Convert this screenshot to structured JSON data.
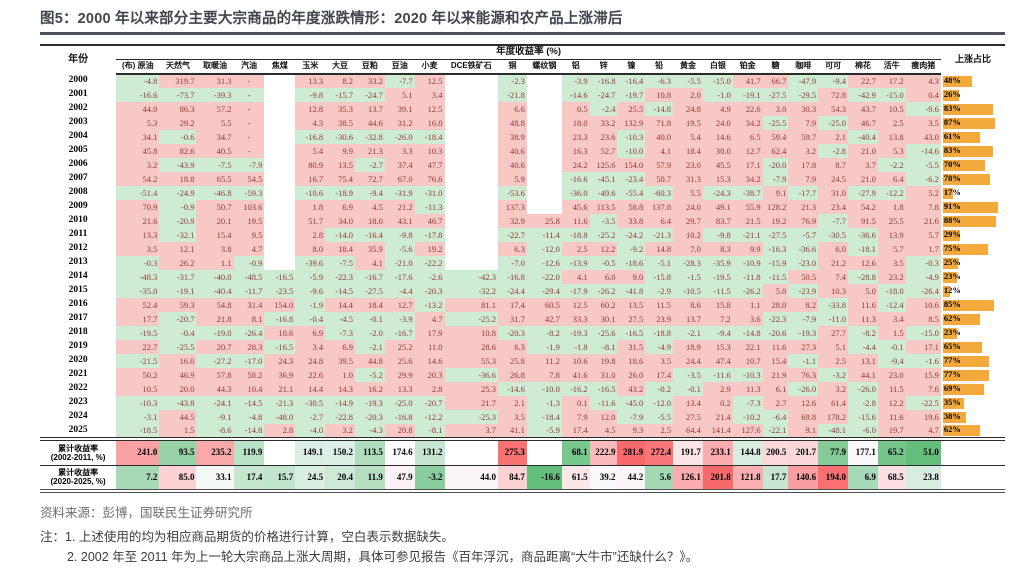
{
  "title": "图5：2000 年以来部分主要大宗商品的年度涨跌情形：2020 年以来能源和农产品上涨滞后",
  "colors": {
    "positive_bg": "#f7c8c4",
    "negative_bg": "#ceecd4",
    "bar_orange": "#F3A93C",
    "number_text": "#943634",
    "scale_low_green": "#63BE7B",
    "scale_mid_white": "#FCFCFF",
    "scale_high_red": "#F8696B",
    "title_color": "#40444d"
  },
  "chart_data": {
    "type": "table",
    "title": "图5：2000 年以来部分主要大宗商品的年度涨跌情形：2020 年以来能源和农产品上涨滞后",
    "year_header": "年份",
    "group_header": "年度收益率 (%)",
    "rise_share_header": "上涨占比",
    "columns": [
      "(布) 原油",
      "天然气",
      "取暖油",
      "汽油",
      "焦煤",
      "玉米",
      "大豆",
      "豆粕",
      "豆油",
      "小麦",
      "DCE铁矿石",
      "铜",
      "螺纹钢",
      "铝",
      "锌",
      "镍",
      "铅",
      "黄金",
      "白银",
      "铂金",
      "糖",
      "咖啡",
      "可可",
      "棉花",
      "活牛",
      "瘦肉猪"
    ],
    "rows": [
      {
        "year": "2000",
        "values": [
          -4.8,
          319.7,
          31.3,
          "-",
          null,
          13.3,
          8.2,
          33.2,
          -7.7,
          12.5,
          null,
          -2.3,
          null,
          -3.9,
          -16.8,
          -16.4,
          -6.3,
          -5.5,
          -15.0,
          41.7,
          66.7,
          -47.9,
          -9.4,
          22.7,
          17.2,
          4.3
        ],
        "rise_share": 48
      },
      {
        "year": "2001",
        "values": [
          -16.6,
          -73.7,
          -39.3,
          "-",
          null,
          -9.8,
          -15.7,
          -24.7,
          5.1,
          3.4,
          null,
          -21.8,
          null,
          -14.6,
          -24.7,
          -19.7,
          10.8,
          2.0,
          -1.0,
          -19.1,
          -27.5,
          -29.5,
          72.8,
          -42.9,
          -15.0,
          0.4
        ],
        "rise_share": 26
      },
      {
        "year": "2002",
        "values": [
          44.0,
          86.3,
          57.2,
          "-",
          null,
          12.8,
          35.3,
          13.7,
          39.1,
          12.5,
          null,
          6.6,
          null,
          0.5,
          -2.4,
          25.5,
          -14.8,
          24.8,
          4.9,
          22.6,
          3.0,
          30.3,
          54.3,
          43.7,
          10.5,
          -9.6
        ],
        "rise_share": 83
      },
      {
        "year": "2003",
        "values": [
          5.3,
          29.2,
          5.5,
          "-",
          null,
          4.3,
          38.5,
          44.6,
          31.2,
          16.0,
          null,
          48.8,
          null,
          18.0,
          33.2,
          132.9,
          71.8,
          19.5,
          24.0,
          34.2,
          -25.5,
          7.9,
          -25.0,
          46.7,
          2.5,
          3.5
        ],
        "rise_share": 87
      },
      {
        "year": "2004",
        "values": [
          34.1,
          -0.6,
          34.7,
          "-",
          null,
          -16.8,
          -30.6,
          -32.8,
          -26.0,
          -18.4,
          null,
          38.9,
          null,
          23.3,
          23.6,
          -10.3,
          40.0,
          5.4,
          14.6,
          6.5,
          59.4,
          59.7,
          2.1,
          -40.4,
          13.8,
          43.0
        ],
        "rise_share": 61
      },
      {
        "year": "2005",
        "values": [
          45.8,
          82.6,
          40.5,
          "-",
          null,
          5.4,
          9.9,
          21.3,
          3.3,
          10.3,
          null,
          40.6,
          null,
          16.3,
          52.7,
          -10.0,
          4.1,
          18.4,
          30.0,
          12.7,
          62.4,
          3.2,
          -2.8,
          21.0,
          5.3,
          -14.6
        ],
        "rise_share": 83
      },
      {
        "year": "2006",
        "values": [
          3.2,
          -43.9,
          -7.5,
          -7.9,
          null,
          80.9,
          13.5,
          -2.7,
          37.4,
          47.7,
          null,
          40.6,
          null,
          24.2,
          125.6,
          154.0,
          57.9,
          23.0,
          45.5,
          17.1,
          -20.0,
          17.8,
          8.7,
          3.7,
          -2.2,
          -5.5
        ],
        "rise_share": 70
      },
      {
        "year": "2007",
        "values": [
          54.2,
          18.8,
          65.5,
          54.5,
          null,
          16.7,
          75.4,
          72.7,
          67.0,
          76.6,
          null,
          5.9,
          null,
          -16.6,
          -45.1,
          -23.4,
          50.7,
          31.3,
          15.3,
          34.2,
          -7.9,
          7.9,
          24.5,
          21.0,
          6.4,
          -6.2
        ],
        "rise_share": 78
      },
      {
        "year": "2008",
        "values": [
          -51.4,
          -24.9,
          -46.8,
          -59.3,
          null,
          -10.6,
          -18.9,
          -9.4,
          -31.9,
          -31.0,
          null,
          -53.6,
          null,
          -36.0,
          -49.6,
          -55.4,
          -60.3,
          5.5,
          -24.3,
          -38.7,
          9.1,
          -17.7,
          31.0,
          -27.9,
          -12.2,
          5.2
        ],
        "rise_share": 17
      },
      {
        "year": "2009",
        "values": [
          70.9,
          -0.9,
          50.7,
          103.6,
          null,
          1.8,
          6.9,
          4.5,
          21.2,
          -11.3,
          null,
          137.3,
          null,
          45.6,
          113.5,
          58.8,
          137.8,
          24.0,
          49.1,
          55.9,
          128.2,
          21.3,
          23.4,
          54.2,
          1.8,
          7.8
        ],
        "rise_share": 91
      },
      {
        "year": "2010",
        "values": [
          21.6,
          -20.9,
          20.1,
          19.5,
          null,
          51.7,
          34.0,
          18.0,
          43.1,
          46.7,
          null,
          32.9,
          25.8,
          11.6,
          -3.5,
          33.8,
          6.4,
          29.7,
          83.7,
          21.5,
          19.2,
          76.9,
          -7.7,
          91.5,
          25.5,
          21.6
        ],
        "rise_share": 88
      },
      {
        "year": "2011",
        "values": [
          13.3,
          -32.1,
          15.4,
          9.5,
          null,
          2.8,
          -14.0,
          -16.4,
          -9.8,
          -17.8,
          null,
          -22.7,
          -11.4,
          -18.8,
          -25.2,
          -24.2,
          -21.3,
          10.2,
          -9.8,
          -21.1,
          -27.5,
          -5.7,
          -30.5,
          -36.6,
          13.9,
          5.7
        ],
        "rise_share": 29
      },
      {
        "year": "2012",
        "values": [
          3.5,
          12.1,
          3.8,
          4.7,
          null,
          8.0,
          18.4,
          35.9,
          -5.6,
          19.2,
          null,
          6.3,
          -12.0,
          2.5,
          12.2,
          -9.2,
          14.8,
          7.0,
          8.3,
          9.9,
          -16.3,
          -36.6,
          6.0,
          -18.1,
          5.7,
          1.7
        ],
        "rise_share": 75
      },
      {
        "year": "2013",
        "values": [
          -0.3,
          26.2,
          1.1,
          -0.9,
          null,
          -39.6,
          -7.5,
          4.1,
          -21.0,
          -22.2,
          null,
          -7.0,
          -12.6,
          -13.9,
          -0.5,
          -18.6,
          -5.1,
          -28.3,
          -35.9,
          -10.9,
          -15.9,
          -23.0,
          21.2,
          12.6,
          3.5,
          -0.3
        ],
        "rise_share": 25
      },
      {
        "year": "2014",
        "values": [
          -48.3,
          -31.7,
          -40.0,
          -48.5,
          -16.5,
          -5.9,
          -22.3,
          -16.7,
          -17.6,
          -2.6,
          -42.3,
          -16.8,
          -22.0,
          4.1,
          6.0,
          9.0,
          -15.8,
          -1.5,
          -19.5,
          -11.8,
          -11.5,
          50.5,
          7.4,
          -28.8,
          23.2,
          -4.9
        ],
        "rise_share": 23
      },
      {
        "year": "2015",
        "values": [
          -35.0,
          -19.1,
          -40.4,
          -11.7,
          -23.5,
          -9.6,
          -14.5,
          -27.5,
          -4.4,
          -20.3,
          -32.2,
          -24.4,
          -29.4,
          -17.9,
          -26.2,
          -41.8,
          -2.9,
          -10.5,
          -11.5,
          -26.2,
          5.0,
          -23.9,
          10.3,
          5.0,
          -18.0,
          -26.4
        ],
        "rise_share": 12
      },
      {
        "year": "2016",
        "values": [
          52.4,
          59.3,
          54.8,
          31.4,
          154.0,
          -1.9,
          14.4,
          18.4,
          12.7,
          -13.2,
          81.1,
          17.4,
          60.5,
          12.5,
          60.2,
          13.5,
          11.5,
          8.6,
          15.8,
          1.1,
          28.0,
          8.2,
          -33.8,
          11.6,
          -12.4,
          10.6
        ],
        "rise_share": 85
      },
      {
        "year": "2017",
        "values": [
          17.7,
          -20.7,
          21.8,
          8.1,
          -16.8,
          -0.4,
          -4.5,
          -0.1,
          -3.9,
          4.7,
          -25.2,
          31.7,
          42.7,
          33.3,
          30.1,
          27.5,
          23.9,
          13.7,
          7.2,
          3.6,
          -22.3,
          -7.9,
          -11.0,
          11.3,
          3.4,
          8.5
        ],
        "rise_share": 62
      },
      {
        "year": "2018",
        "values": [
          -19.5,
          -0.4,
          -19.0,
          -26.4,
          10.6,
          6.9,
          -7.3,
          -2.0,
          -16.7,
          17.9,
          10.8,
          -20.3,
          -8.2,
          -19.3,
          -25.6,
          -16.5,
          -18.8,
          -2.1,
          -9.4,
          -14.8,
          -20.6,
          -19.3,
          27.7,
          -8.2,
          1.5,
          -15.0
        ],
        "rise_share": 23
      },
      {
        "year": "2019",
        "values": [
          22.7,
          -25.5,
          20.7,
          28.3,
          -16.5,
          3.4,
          6.9,
          -2.1,
          25.2,
          11.0,
          28.6,
          6.3,
          -1.9,
          -1.8,
          -8.1,
          31.5,
          -4.9,
          18.9,
          15.3,
          22.1,
          11.6,
          27.3,
          5.1,
          -4.4,
          -0.1,
          17.1
        ],
        "rise_share": 65
      },
      {
        "year": "2020",
        "values": [
          -21.5,
          16.0,
          -27.2,
          -17.0,
          24.3,
          24.8,
          39.5,
          44.8,
          25.6,
          14.6,
          55.3,
          25.8,
          11.2,
          10.6,
          19.8,
          18.6,
          3.5,
          24.4,
          47.4,
          10.7,
          15.4,
          -1.1,
          2.5,
          13.1,
          -9.4,
          -1.6
        ],
        "rise_share": 77
      },
      {
        "year": "2021",
        "values": [
          50.2,
          46.9,
          57.8,
          58.2,
          36.9,
          22.6,
          1.0,
          -5.2,
          29.9,
          20.3,
          -36.6,
          26.8,
          7.8,
          41.6,
          31.0,
          26.0,
          17.4,
          -3.5,
          -11.6,
          -10.3,
          21.9,
          76.3,
          -3.2,
          44.1,
          23.0,
          15.9
        ],
        "rise_share": 77
      },
      {
        "year": "2022",
        "values": [
          10.5,
          20.0,
          44.3,
          10.4,
          21.1,
          14.4,
          14.3,
          16.2,
          13.3,
          2.8,
          25.3,
          -14.6,
          -10.0,
          -16.2,
          -16.5,
          43.2,
          -0.2,
          -0.1,
          2.9,
          11.3,
          6.1,
          -26.0,
          3.2,
          -26.0,
          11.5,
          7.6
        ],
        "rise_share": 69
      },
      {
        "year": "2023",
        "values": [
          -10.3,
          -43.8,
          -24.1,
          -14.5,
          -21.3,
          -30.5,
          -14.9,
          -19.3,
          -25.0,
          -20.7,
          21.7,
          2.1,
          -1.3,
          0.1,
          -11.6,
          -45.0,
          -12.0,
          13.4,
          0.2,
          -7.3,
          2.7,
          12.6,
          61.4,
          -2.8,
          12.2,
          -22.5
        ],
        "rise_share": 35
      },
      {
        "year": "2024",
        "values": [
          -3.1,
          44.5,
          -9.1,
          -4.8,
          -48.0,
          -2.7,
          -22.8,
          -20.3,
          -16.8,
          -12.2,
          -25.3,
          3.5,
          -18.4,
          7.9,
          12.0,
          -7.9,
          -5.5,
          27.5,
          21.4,
          -10.2,
          -6.4,
          69.8,
          178.2,
          -15.6,
          11.6,
          19.6
        ],
        "rise_share": 38
      },
      {
        "year": "2025",
        "values": [
          -18.5,
          1.5,
          -8.6,
          -14.8,
          2.8,
          -4.0,
          3.2,
          -4.3,
          20.8,
          -8.1,
          3.7,
          41.1,
          -5.9,
          17.4,
          4.5,
          9.3,
          2.5,
          64.4,
          141.4,
          127.6,
          -22.1,
          9.1,
          -48.1,
          -6.0,
          19.7,
          4.7
        ],
        "rise_share": 62
      }
    ],
    "summary_rows": [
      {
        "label_line1": "累计收益率",
        "label_line2": "(2002-2011, %)",
        "values": [
          241.0,
          93.5,
          235.2,
          119.9,
          null,
          149.1,
          150.2,
          113.5,
          174.6,
          131.2,
          null,
          275.3,
          null,
          68.1,
          222.9,
          281.9,
          272.4,
          191.7,
          233.1,
          144.8,
          200.5,
          201.7,
          77.9,
          177.1,
          65.2,
          51.0
        ]
      },
      {
        "label_line1": "累计收益率",
        "label_line2": "(2020-2025, %)",
        "values": [
          7.2,
          85.0,
          33.1,
          17.4,
          15.7,
          24.5,
          20.4,
          11.9,
          47.9,
          -3.2,
          44.0,
          84.7,
          -16.6,
          61.5,
          39.2,
          44.2,
          5.6,
          126.1,
          201.8,
          121.8,
          17.7,
          140.6,
          194.0,
          6.9,
          68.5,
          23.8
        ]
      }
    ]
  },
  "footer": {
    "source": "资料来源：彭博，国联民生证券研究所",
    "note1": "注：1. 上述使用的均为相应商品期货的价格进行计算，空白表示数据缺失。",
    "note2": "2. 2002 年至 2011 年为上一轮大宗商品上涨大周期，具体可参见报告《百年浮沉，商品距离“大牛市”还缺什么？》。"
  }
}
